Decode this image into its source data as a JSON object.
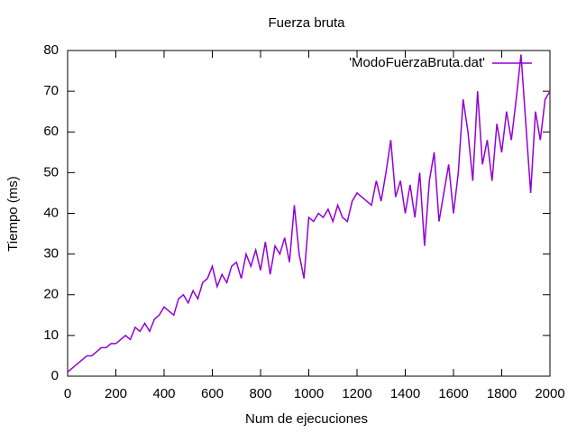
{
  "chart_data": {
    "type": "line",
    "title": "Fuerza bruta",
    "xlabel": "Num de ejecuciones",
    "ylabel": "Tiempo (ms)",
    "x": [
      0,
      20,
      40,
      60,
      80,
      100,
      120,
      140,
      160,
      180,
      200,
      220,
      240,
      260,
      280,
      300,
      320,
      340,
      360,
      380,
      400,
      420,
      440,
      460,
      480,
      500,
      520,
      540,
      560,
      580,
      600,
      620,
      640,
      660,
      680,
      700,
      720,
      740,
      760,
      780,
      800,
      820,
      840,
      860,
      880,
      900,
      920,
      940,
      960,
      980,
      1000,
      1020,
      1040,
      1060,
      1080,
      1100,
      1120,
      1140,
      1160,
      1180,
      1200,
      1220,
      1240,
      1260,
      1280,
      1300,
      1320,
      1340,
      1360,
      1380,
      1400,
      1420,
      1440,
      1460,
      1480,
      1500,
      1520,
      1540,
      1560,
      1580,
      1600,
      1620,
      1640,
      1660,
      1680,
      1700,
      1720,
      1740,
      1760,
      1780,
      1800,
      1820,
      1840,
      1860,
      1880,
      1900,
      1920,
      1940,
      1960,
      1980,
      2000
    ],
    "series": [
      {
        "name": "'ModoFuerzaBruta.dat'",
        "color": "#9400d3",
        "values": [
          1,
          2,
          3,
          4,
          5,
          5,
          6,
          7,
          7,
          8,
          8,
          9,
          10,
          9,
          12,
          11,
          13,
          11,
          14,
          15,
          17,
          16,
          15,
          19,
          20,
          18,
          21,
          19,
          23,
          24,
          27,
          22,
          25,
          23,
          27,
          28,
          24,
          30,
          27,
          31,
          26,
          33,
          25,
          32,
          30,
          34,
          28,
          42,
          30,
          24,
          39,
          38,
          40,
          39,
          41,
          38,
          42,
          39,
          38,
          43,
          45,
          44,
          43,
          42,
          48,
          43,
          50,
          58,
          44,
          48,
          40,
          47,
          39,
          50,
          32,
          48,
          55,
          38,
          45,
          52,
          40,
          50,
          68,
          60,
          48,
          70,
          52,
          58,
          48,
          62,
          55,
          65,
          58,
          68,
          79,
          62,
          45,
          65,
          58,
          68,
          70
        ]
      }
    ],
    "xlim": [
      0,
      2000
    ],
    "xticks": [
      0,
      200,
      400,
      600,
      800,
      1000,
      1200,
      1400,
      1600,
      1800,
      2000
    ],
    "ylim": [
      0,
      80
    ],
    "yticks": [
      0,
      10,
      20,
      30,
      40,
      50,
      60,
      70,
      80
    ],
    "legend": "top-right"
  }
}
